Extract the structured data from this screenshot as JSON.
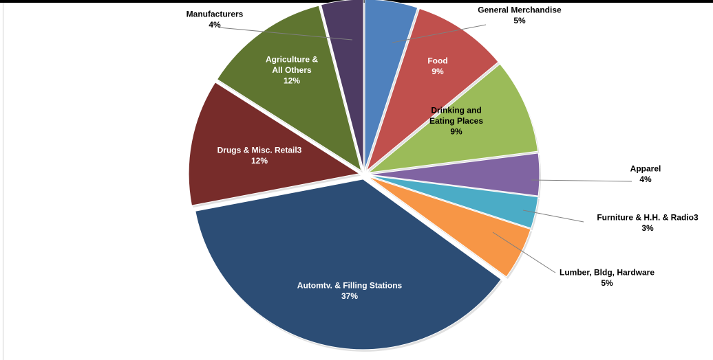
{
  "chart_data": {
    "type": "pie",
    "title": "",
    "exploded": true,
    "slices": [
      {
        "name": "General Merchandise",
        "value": 5,
        "label": "5%",
        "color": "#4f81bd",
        "label_lines": [
          "General Merchandise",
          "5%"
        ],
        "label_color": "#000000"
      },
      {
        "name": "Food",
        "value": 9,
        "label": "9%",
        "color": "#c0504d",
        "label_lines": [
          "Food",
          "9%"
        ],
        "label_color": "#ffffff"
      },
      {
        "name": "Drinking and Eating Places",
        "value": 9,
        "label": "9%",
        "color": "#9bbb59",
        "label_lines": [
          "Drinking and",
          "Eating Places",
          "9%"
        ],
        "label_color": "#000000"
      },
      {
        "name": "Apparel",
        "value": 4,
        "label": "4%",
        "color": "#8064a2",
        "label_lines": [
          "Apparel",
          "4%"
        ],
        "label_color": "#000000"
      },
      {
        "name": "Furniture & H.H. & Radio3",
        "value": 3,
        "label": "3%",
        "color": "#4bacc6",
        "label_lines": [
          "Furniture & H.H. & Radio3",
          "3%"
        ],
        "label_color": "#000000"
      },
      {
        "name": "Lumber, Bldg, Hardware",
        "value": 5,
        "label": "5%",
        "color": "#f79646",
        "label_lines": [
          "Lumber, Bldg, Hardware",
          "5%"
        ],
        "label_color": "#000000"
      },
      {
        "name": "Automtv. & Filling Stations",
        "value": 37,
        "label": "37%",
        "color": "#2c4d75",
        "label_lines": [
          "Automtv. & Filling Stations",
          "37%"
        ],
        "label_color": "#ffffff"
      },
      {
        "name": "Drugs & Misc. Retail3",
        "value": 12,
        "label": "12%",
        "color": "#772c2a",
        "label_lines": [
          "Drugs & Misc. Retail3",
          "12%"
        ],
        "label_color": "#ffffff"
      },
      {
        "name": "Agriculture & All Others",
        "value": 12,
        "label": "12%",
        "color": "#5f7530",
        "label_lines": [
          "Agriculture &",
          "All Others",
          "12%"
        ],
        "label_color": "#ffffff"
      },
      {
        "name": "Manufacturers",
        "value": 4,
        "label": "4%",
        "color": "#4d3b62",
        "label_lines": [
          "Manufacturers",
          "4%"
        ],
        "label_color": "#000000"
      }
    ]
  }
}
